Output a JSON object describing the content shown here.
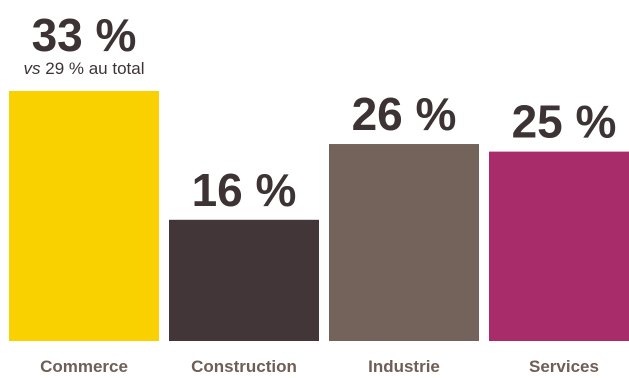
{
  "chart_data": {
    "type": "bar",
    "categories": [
      "Commerce",
      "Construction",
      "Industrie",
      "Services"
    ],
    "values": [
      33,
      16,
      26,
      25
    ],
    "value_labels": [
      "33 %",
      "16 %",
      "26 %",
      "25 %"
    ],
    "colors": [
      "#f9d000",
      "#433638",
      "#73635a",
      "#a92c6a"
    ],
    "annotation": {
      "italic_part": "vs",
      "text_part": " 29 % au total",
      "category": "Commerce"
    },
    "ylim": [
      0,
      33
    ],
    "grid": false,
    "legend": "none",
    "xlabel": "",
    "ylabel": ""
  }
}
